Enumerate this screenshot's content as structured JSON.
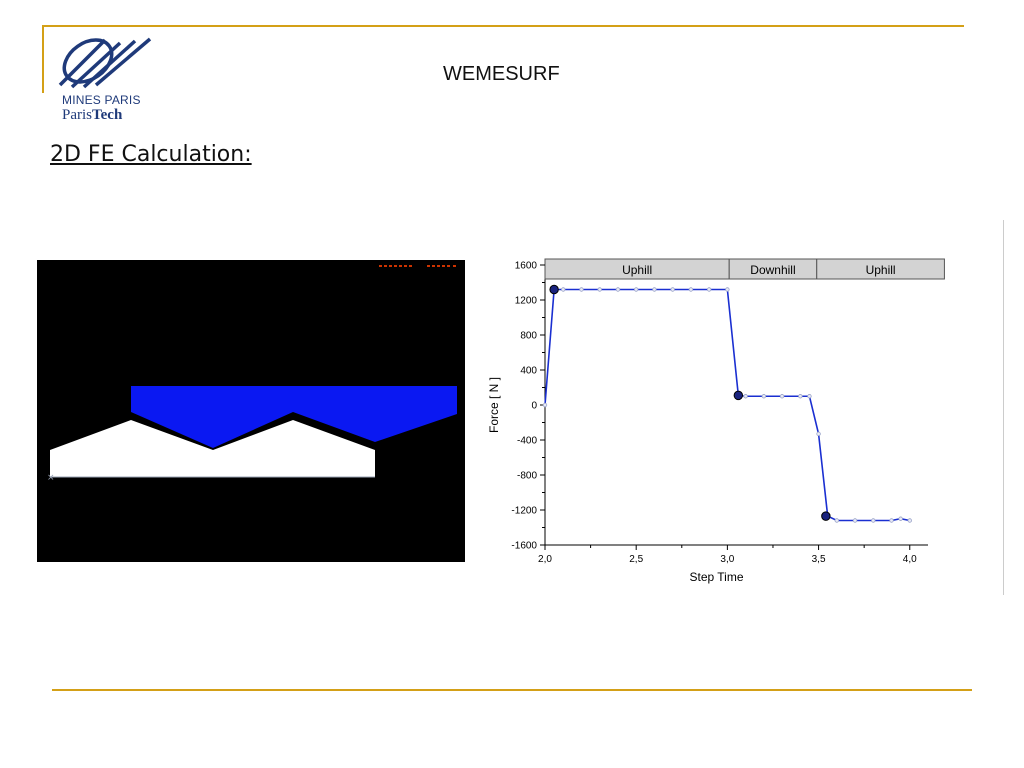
{
  "header": {
    "title": "WEMESURF",
    "logo_line1": "MINES PARIS",
    "logo_line2_a": "Paris",
    "logo_line2_b": "Tech"
  },
  "section": {
    "heading": "2D FE Calculation:"
  },
  "colors": {
    "accent_rule": "#d4a017",
    "logo_blue": "#1f3a7a",
    "series_line": "#1a2fd1",
    "die_blue": "#0a18f2"
  },
  "fe_panel": {
    "icon": "fe-simulation-image"
  },
  "chart_data": {
    "type": "line",
    "xlabel": "Step Time",
    "ylabel": "Force [ N ]",
    "xlim": [
      2.0,
      4.1
    ],
    "ylim": [
      -1600,
      1600
    ],
    "xticks": [
      "2,0",
      "2,5",
      "3,0",
      "3,5",
      "4,0"
    ],
    "xtick_values": [
      2.0,
      2.5,
      3.0,
      3.5,
      4.0
    ],
    "yticks": [
      "1600",
      "1200",
      "800",
      "400",
      "0",
      "-400",
      "-800",
      "-1200",
      "-1600"
    ],
    "ytick_values": [
      1600,
      1200,
      800,
      400,
      0,
      -400,
      -800,
      -1200,
      -1600
    ],
    "phases": [
      {
        "label": "Uphill",
        "x_start": 2.0,
        "x_end": 3.01
      },
      {
        "label": "Downhill",
        "x_start": 3.01,
        "x_end": 3.49
      },
      {
        "label": "Uphill",
        "x_start": 3.49,
        "x_end": 4.19
      }
    ],
    "series": [
      {
        "x": [
          2.0,
          2.05,
          2.1,
          2.2,
          2.3,
          2.4,
          2.5,
          2.6,
          2.7,
          2.8,
          2.9,
          3.0,
          3.06,
          3.1,
          3.2,
          3.3,
          3.4,
          3.45,
          3.5,
          3.55,
          3.6,
          3.7,
          3.8,
          3.9,
          3.95,
          4.0
        ],
        "y": [
          0,
          1320,
          1320,
          1320,
          1320,
          1320,
          1320,
          1320,
          1320,
          1320,
          1320,
          1320,
          110,
          100,
          100,
          100,
          100,
          100,
          -330,
          -1270,
          -1320,
          -1320,
          -1320,
          -1320,
          -1300,
          -1320
        ]
      }
    ],
    "highlight_points": [
      {
        "x": 2.05,
        "y": 1320
      },
      {
        "x": 3.06,
        "y": 110
      },
      {
        "x": 3.54,
        "y": -1270
      }
    ],
    "grid": false
  }
}
